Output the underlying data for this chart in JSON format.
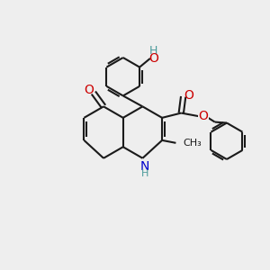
{
  "bg_color": "#eeeeee",
  "bond_color": "#1a1a1a",
  "oxygen_color": "#cc0000",
  "nitrogen_color": "#0000cc",
  "hydrogen_color": "#4a9a9a",
  "bond_width": 1.5,
  "figsize": [
    3.0,
    3.0
  ],
  "dpi": 100,
  "xlim": [
    0,
    10
  ],
  "ylim": [
    0,
    10
  ]
}
